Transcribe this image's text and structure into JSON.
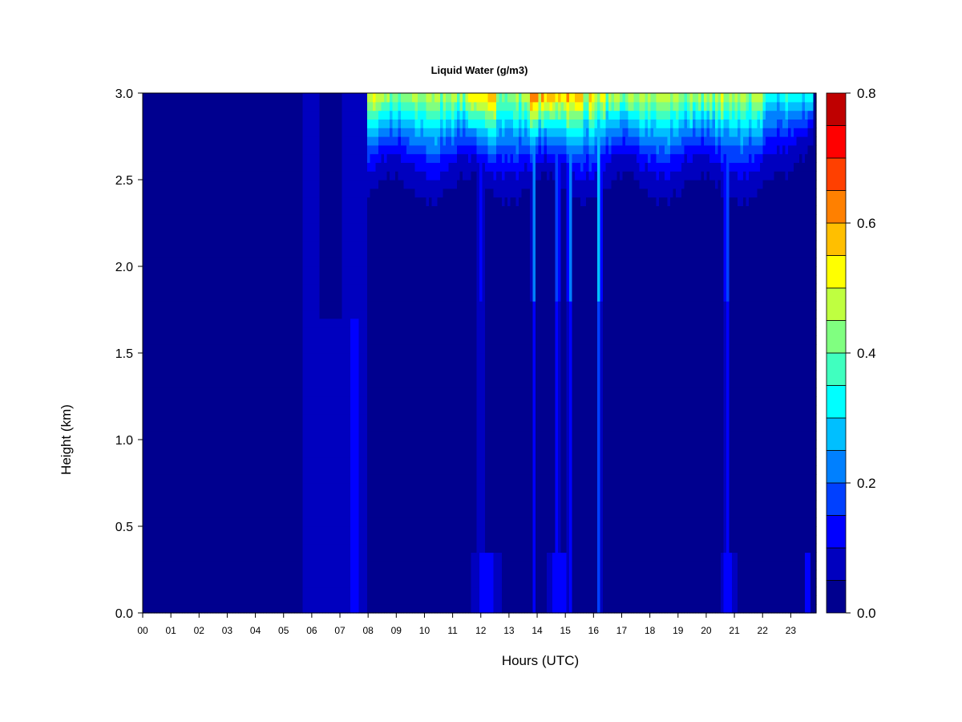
{
  "chart_data": {
    "type": "heatmap",
    "title": "Liquid Water (g/m3)",
    "xlabel": "Hours (UTC)",
    "ylabel": "Height (km)",
    "x_ticks": [
      "00",
      "01",
      "02",
      "03",
      "04",
      "05",
      "06",
      "07",
      "08",
      "09",
      "10",
      "11",
      "12",
      "13",
      "14",
      "15",
      "16",
      "17",
      "18",
      "19",
      "20",
      "21",
      "22",
      "23"
    ],
    "y_ticks": [
      "0.0",
      "0.5",
      "1.0",
      "1.5",
      "2.0",
      "2.5",
      "3.0"
    ],
    "xlim": [
      0,
      23.9
    ],
    "ylim": [
      0,
      3.0
    ],
    "colorbar": {
      "levels": [
        0.0,
        0.05,
        0.1,
        0.15,
        0.2,
        0.25,
        0.3,
        0.35,
        0.4,
        0.45,
        0.5,
        0.55,
        0.6,
        0.65,
        0.7,
        0.75,
        0.8
      ],
      "colors": [
        "#00008f",
        "#0000bf",
        "#0000ff",
        "#0040ff",
        "#0080ff",
        "#00bfff",
        "#00ffff",
        "#40ffbf",
        "#80ff80",
        "#bfff40",
        "#ffff00",
        "#ffbf00",
        "#ff8000",
        "#ff4000",
        "#ff0000",
        "#bf0000",
        "#800000"
      ],
      "tick_labels": [
        "0.0",
        "0.2",
        "0.4",
        "0.6",
        "0.8"
      ]
    },
    "features": [
      {
        "t_start": 8.0,
        "t_end": 23.8,
        "z_base": 2.4,
        "z_top": 3.0,
        "peak": 0.55,
        "note": "cloud layer near top"
      },
      {
        "t_start": 13.8,
        "t_end": 14.0,
        "z_base": 0.0,
        "z_top": 3.0,
        "peak": 0.3
      },
      {
        "t_start": 14.6,
        "t_end": 15.4,
        "z_base": 0.0,
        "z_top": 3.0,
        "peak": 0.3
      },
      {
        "t_start": 16.1,
        "t_end": 16.3,
        "z_base": 0.0,
        "z_top": 3.0,
        "peak": 0.3
      },
      {
        "t_start": 20.6,
        "t_end": 20.9,
        "z_base": 0.0,
        "z_top": 3.0,
        "peak": 0.25
      },
      {
        "t_start": 5.7,
        "t_end": 8.0,
        "z_base": 0.0,
        "z_top": 3.0,
        "peak": 0.1
      }
    ]
  }
}
